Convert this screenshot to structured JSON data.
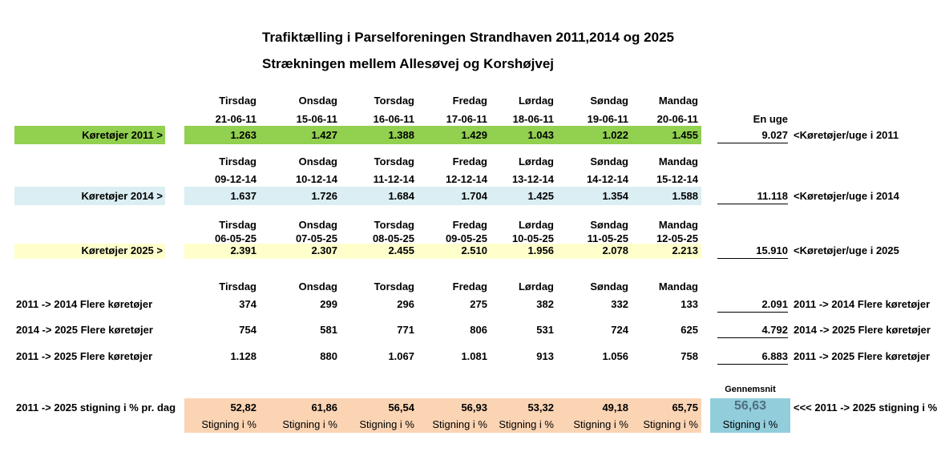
{
  "title_line1": "Trafiktælling i Parselforeningen Strandhaven 2011,2014 og 2025",
  "title_line2": "Strækningen mellem Allesøvej og Korshøjvej",
  "en_uge_label": "En uge",
  "block2011": {
    "days": [
      "Tirsdag",
      "Onsdag",
      "Torsdag",
      "Fredag",
      "Lørdag",
      "Søndag",
      "Mandag"
    ],
    "dates": [
      "21-06-11",
      "15-06-11",
      "16-06-11",
      "17-06-11",
      "18-06-11",
      "19-06-11",
      "20-06-11"
    ],
    "label": "Køretøjer 2011 >",
    "values": [
      "1.263",
      "1.427",
      "1.388",
      "1.429",
      "1.043",
      "1.022",
      "1.455"
    ],
    "total": "9.027",
    "note": "<Køretøjer/uge i 2011"
  },
  "block2014": {
    "days": [
      "Tirsdag",
      "Onsdag",
      "Torsdag",
      "Fredag",
      "Lørdag",
      "Søndag",
      "Mandag"
    ],
    "dates": [
      "09-12-14",
      "10-12-14",
      "11-12-14",
      "12-12-14",
      "13-12-14",
      "14-12-14",
      "15-12-14"
    ],
    "label": "Køretøjer 2014 >",
    "values": [
      "1.637",
      "1.726",
      "1.684",
      "1.704",
      "1.425",
      "1.354",
      "1.588"
    ],
    "total": "11.118",
    "note": "<Køretøjer/uge i 2014"
  },
  "block2025": {
    "days": [
      "Tirsdag",
      "Onsdag",
      "Torsdag",
      "Fredag",
      "Lørdag",
      "Søndag",
      "Mandag"
    ],
    "dates": [
      "06-05-25",
      "07-05-25",
      "08-05-25",
      "09-05-25",
      "10-05-25",
      "11-05-25",
      "12-05-25"
    ],
    "label": "Køretøjer 2025 >",
    "values": [
      "2.391",
      "2.307",
      "2.455",
      "2.510",
      "1.956",
      "2.078",
      "2.213"
    ],
    "total": "15.910",
    "note": "<Køretøjer/uge i 2025"
  },
  "compare": {
    "days": [
      "Tirsdag",
      "Onsdag",
      "Torsdag",
      "Fredag",
      "Lørdag",
      "Søndag",
      "Mandag"
    ],
    "rows": [
      {
        "label": "2011 -> 2014 Flere køretøjer",
        "values": [
          "374",
          "299",
          "296",
          "275",
          "382",
          "332",
          "133"
        ],
        "total": "2.091",
        "note": "2011 -> 2014 Flere køretøjer"
      },
      {
        "label": "2014 -> 2025 Flere køretøjer",
        "values": [
          "754",
          "581",
          "771",
          "806",
          "531",
          "724",
          "625"
        ],
        "total": "4.792",
        "note": "2014 -> 2025 Flere køretøjer"
      },
      {
        "label": "2011 -> 2025 Flere køretøjer",
        "values": [
          "1.128",
          "880",
          "1.067",
          "1.081",
          "913",
          "1.056",
          "758"
        ],
        "total": "6.883",
        "note": "2011 -> 2025 Flere køretøjer"
      }
    ]
  },
  "increase": {
    "label": "2011 -> 2025 stigning i % pr. dag",
    "values": [
      "52,82",
      "61,86",
      "56,54",
      "56,93",
      "53,32",
      "49,18",
      "65,75"
    ],
    "sub_label": "Stigning i %",
    "avg_header": "Gennemsnit",
    "avg_value": "56,63",
    "avg_sub": "Stigning i %",
    "note": "<<< 2011 -> 2025 stigning i %"
  },
  "colors": {
    "green": "#92d050",
    "blue": "#daeef3",
    "yellow": "#ffffcc",
    "orange": "#fbd4b4",
    "teal": "#92cddc"
  }
}
